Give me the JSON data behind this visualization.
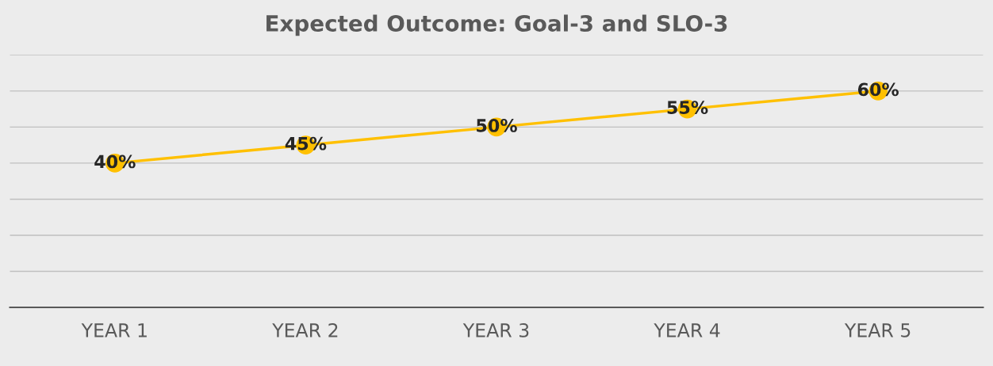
{
  "chart_data": {
    "type": "line",
    "title": "Expected Outcome: Goal-3 and SLO-3",
    "categories": [
      "YEAR 1",
      "YEAR 2",
      "YEAR 3",
      "YEAR 4",
      "YEAR 5"
    ],
    "series": [
      {
        "color": "#ffc000",
        "values": [
          40,
          45,
          50,
          55,
          60
        ],
        "value_labels": [
          "40%",
          "45%",
          "50%",
          "55%",
          "60%"
        ]
      }
    ],
    "ylim": [
      0,
      70
    ],
    "yticks": [
      {
        "value": 0,
        "label": null
      },
      {
        "value": 10,
        "label": null
      },
      {
        "value": 20,
        "label": null
      },
      {
        "value": 30,
        "label": null
      },
      {
        "value": 40,
        "label": null
      },
      {
        "value": 50,
        "label": null
      },
      {
        "value": 60,
        "label": null
      },
      {
        "value": 70,
        "label": null
      }
    ],
    "tick_labels": "x",
    "grid": "y",
    "legend": false,
    "marker": "circle",
    "line_style": "solid"
  }
}
